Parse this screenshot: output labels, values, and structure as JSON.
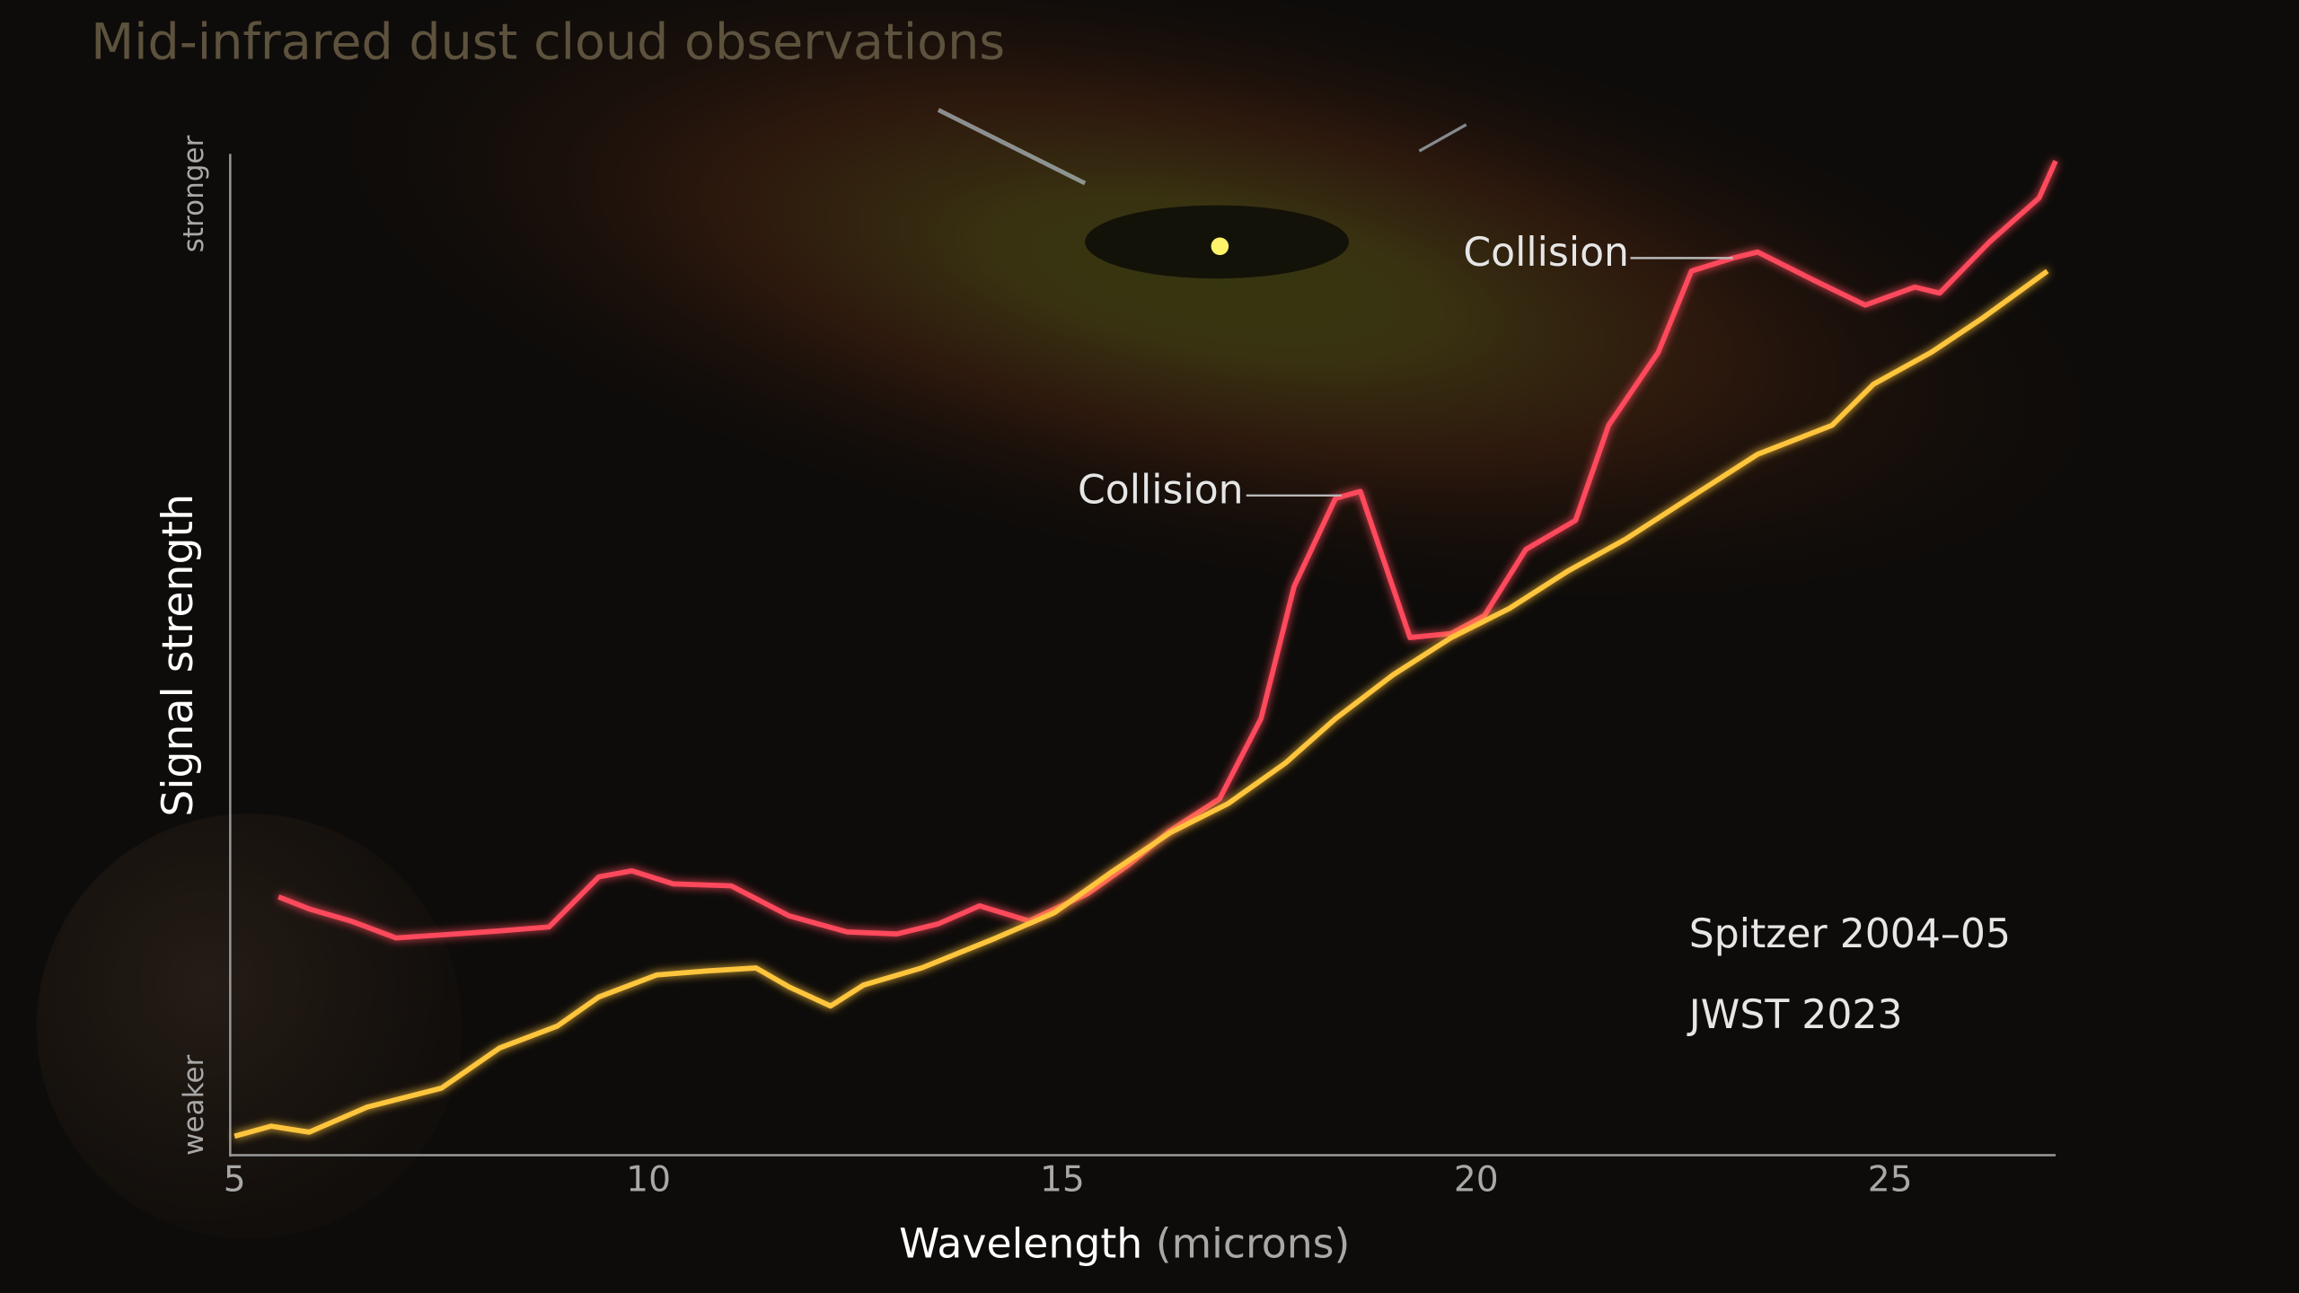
{
  "chart_data": {
    "type": "line",
    "title": "Mid-infrared dust cloud observations",
    "xlabel": "Wavelength",
    "xunit": "(microns)",
    "ylabel": "Signal strength",
    "xlim": [
      5,
      27
    ],
    "xticks": [
      5,
      10,
      15,
      20,
      25
    ],
    "ylim": [
      0,
      100
    ],
    "yticks": [
      {
        "value": 5,
        "label": "weaker"
      },
      {
        "value": 96,
        "label": "stronger"
      }
    ],
    "legend": "lower right",
    "annotations": [
      "Collision",
      "Collision"
    ],
    "series": [
      {
        "name": "Spitzer 2004–05",
        "color": "#ff4a5c",
        "x": [
          5.53,
          5.9,
          6.4,
          6.95,
          7.5,
          8.2,
          8.8,
          9.4,
          9.8,
          10.3,
          11.0,
          11.7,
          12.4,
          13.0,
          13.5,
          14.0,
          14.6,
          15.3,
          15.8,
          16.3,
          16.9,
          17.4,
          17.8,
          18.3,
          18.6,
          18.9,
          19.2,
          19.7,
          20.1,
          20.6,
          21.2,
          21.6,
          22.2,
          22.6,
          23.1,
          23.4,
          24.1,
          24.7,
          25.3,
          25.6,
          26.2,
          26.8,
          27.0
        ],
        "values": [
          25.8,
          24.6,
          23.4,
          21.7,
          22,
          22.4,
          22.8,
          27.8,
          28.4,
          27.1,
          26.9,
          23.9,
          22.3,
          22.1,
          23.1,
          24.9,
          23.4,
          26.1,
          29,
          32.4,
          35.6,
          43.6,
          56.8,
          65.6,
          66.3,
          59,
          51.7,
          52.1,
          53.9,
          60.5,
          63.4,
          72.9,
          80.2,
          88.3,
          89.6,
          90.2,
          87.3,
          84.9,
          86.7,
          86.1,
          91.2,
          95.6,
          99.3
        ]
      },
      {
        "name": "JWST 2023",
        "color": "#ffc53d",
        "x": [
          5.0,
          5.44,
          5.9,
          6.6,
          7.5,
          8.2,
          8.9,
          9.4,
          10.1,
          10.7,
          11.3,
          11.7,
          12.2,
          12.6,
          13.3,
          14.2,
          14.9,
          15.6,
          16.3,
          17.0,
          17.7,
          18.3,
          19.0,
          19.7,
          20.4,
          21.1,
          21.8,
          22.7,
          23.4,
          24.3,
          24.8,
          25.5,
          26.1,
          26.9
        ],
        "values": [
          1.9,
          2.9,
          2.3,
          4.8,
          6.7,
          10.7,
          12.9,
          15.8,
          18,
          18.4,
          18.7,
          16.8,
          14.9,
          17,
          18.7,
          21.7,
          24.2,
          28.3,
          32.2,
          35.1,
          39.2,
          43.6,
          48,
          51.7,
          54.6,
          58.3,
          61.5,
          66.3,
          70,
          72.9,
          77,
          80.2,
          83.5,
          88.3
        ]
      }
    ]
  }
}
